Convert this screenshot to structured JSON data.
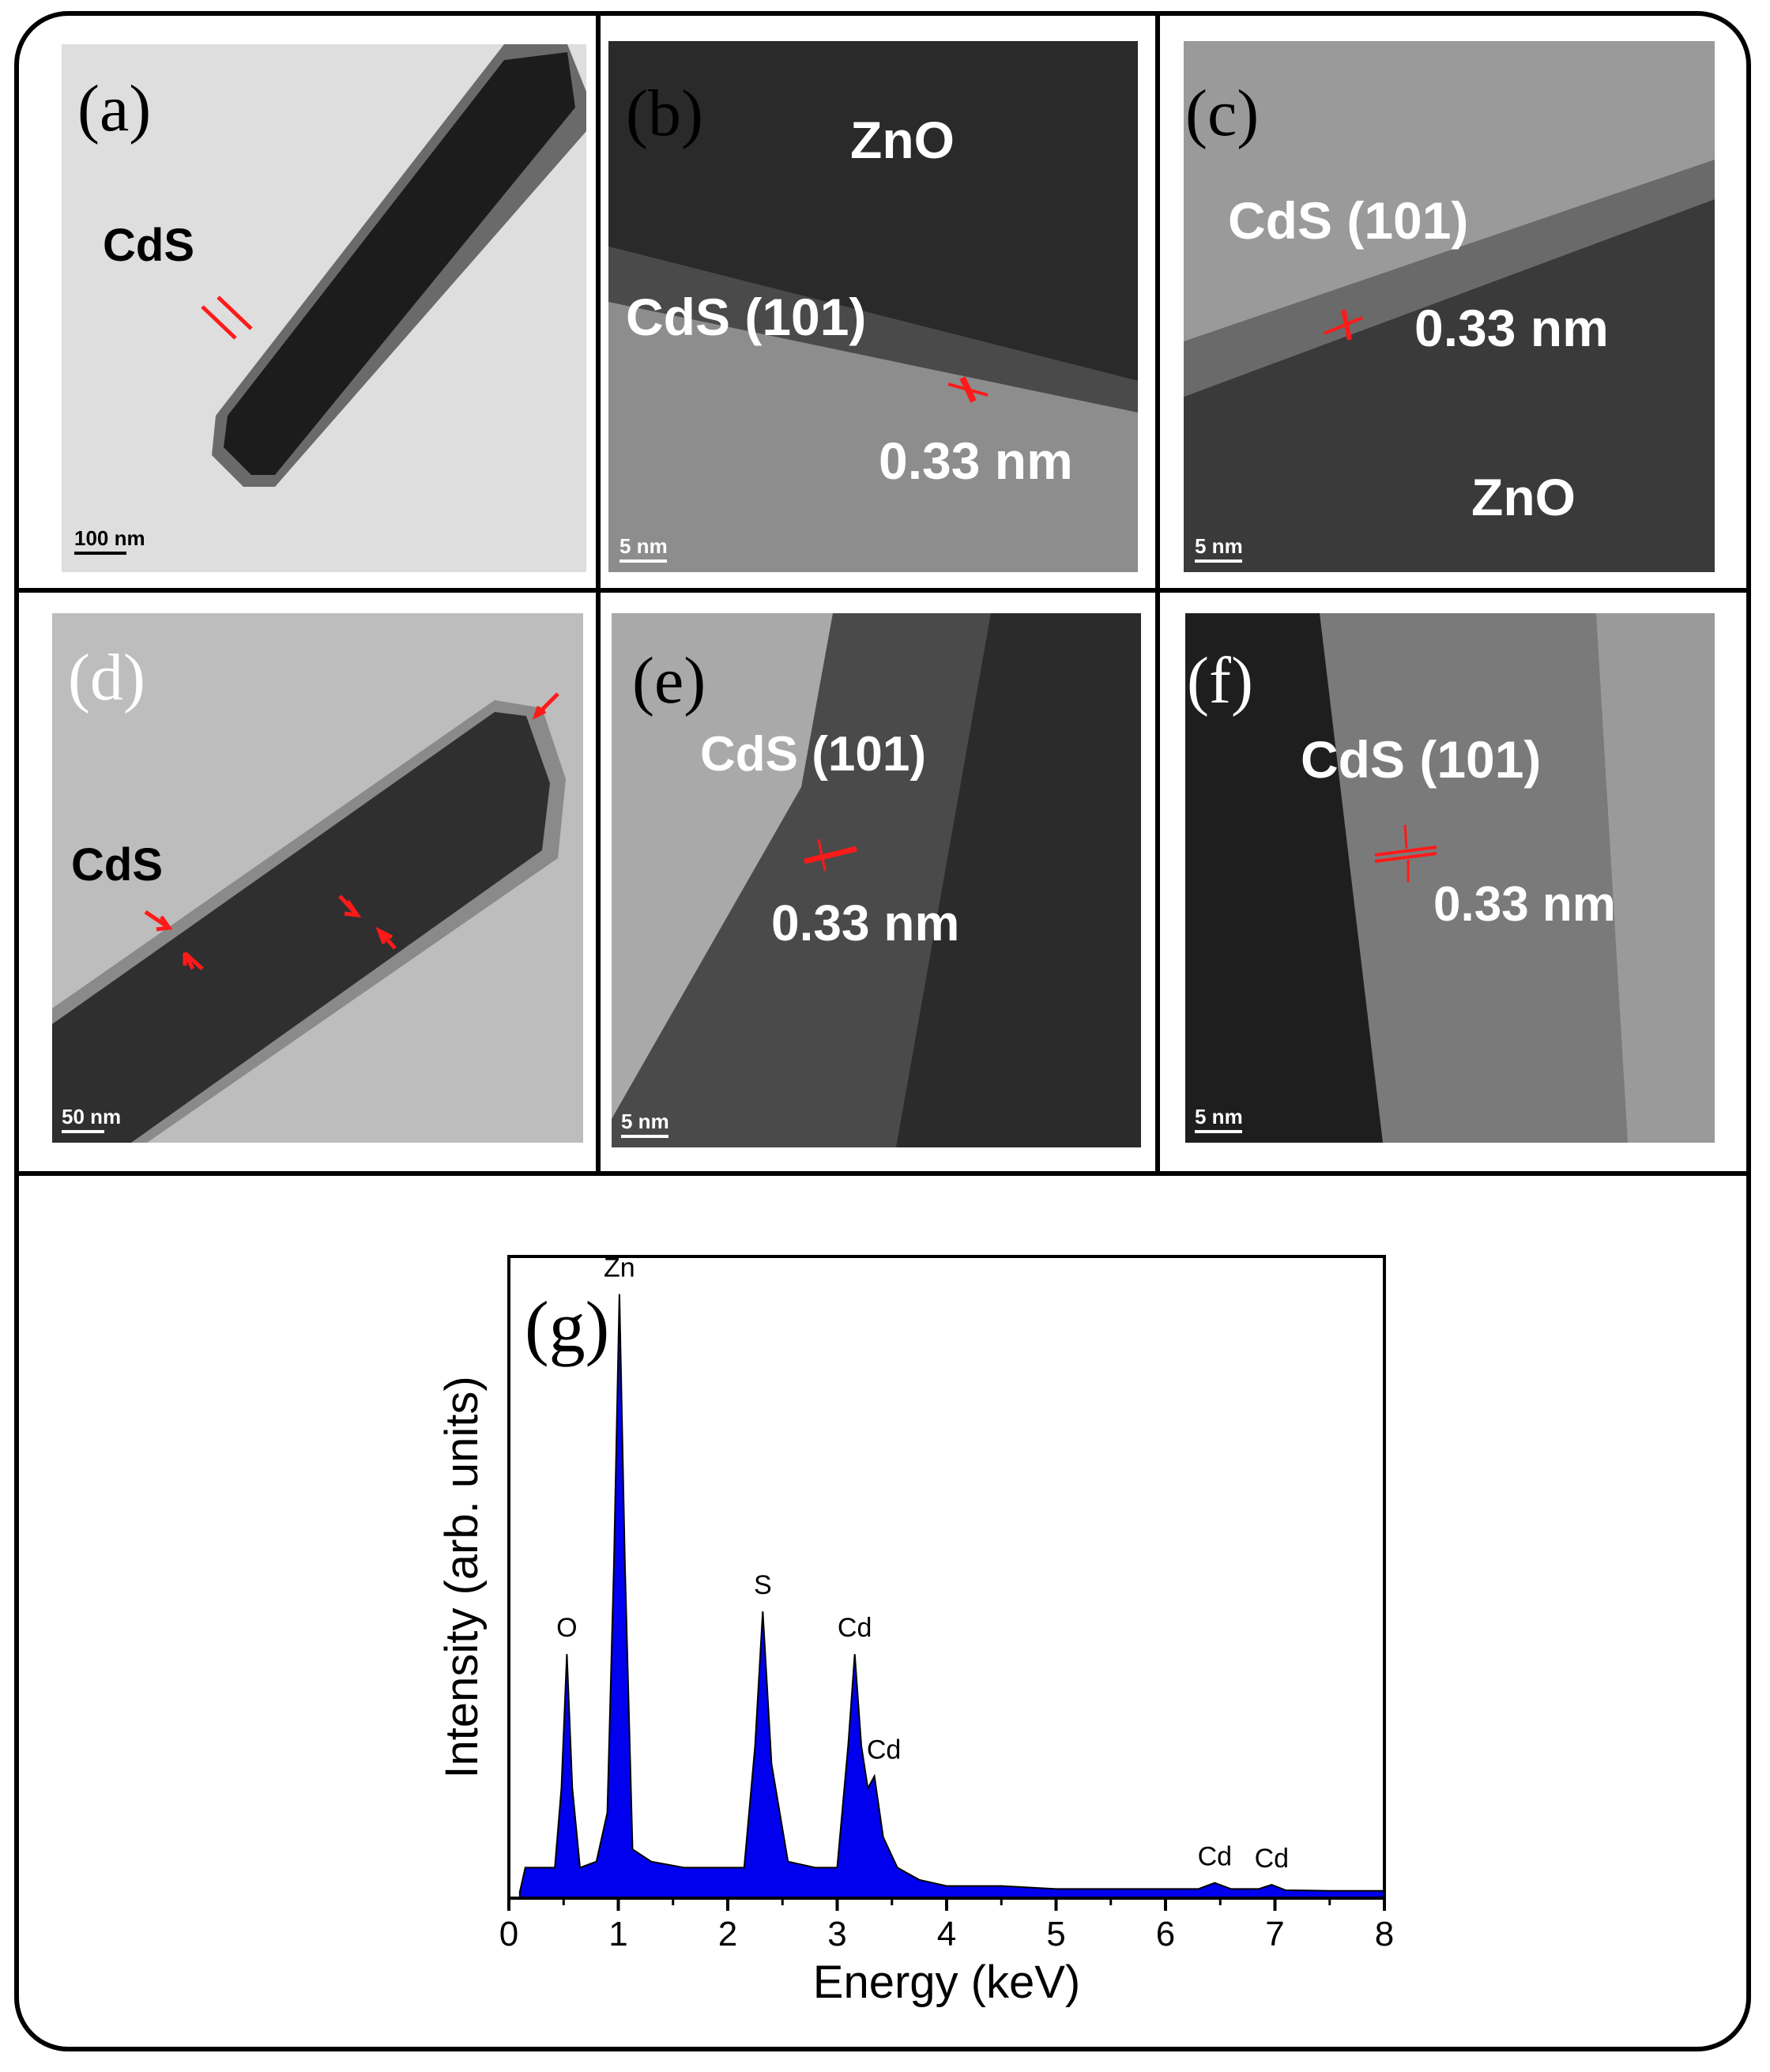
{
  "panels": {
    "a": {
      "tag": "(a)",
      "label": "CdS",
      "scale": "100 nm"
    },
    "b": {
      "tag": "(b)",
      "material": "ZnO",
      "label": "CdS (101)",
      "spacing": "0.33 nm",
      "scale": "5 nm"
    },
    "c": {
      "tag": "(c)",
      "label": "CdS (101)",
      "spacing": "0.33 nm",
      "material": "ZnO",
      "scale": "5 nm"
    },
    "d": {
      "tag": "(d)",
      "label": "CdS",
      "scale": "50 nm"
    },
    "e": {
      "tag": "(e)",
      "label": "CdS (101)",
      "spacing": "0.33 nm",
      "scale": "5 nm"
    },
    "f": {
      "tag": "(f)",
      "label": "CdS (101)",
      "spacing": "0.33 nm",
      "scale": "5 nm"
    }
  },
  "colors": {
    "arrow": "#ff1a1a",
    "spectrum": "#0000ee"
  },
  "chart_data": {
    "type": "area",
    "panel_tag": "(g)",
    "xlabel": "Energy (keV)",
    "ylabel": "Intensity (arb. units)",
    "xlim": [
      0,
      8
    ],
    "ylim": [
      0,
      100
    ],
    "xticks": [
      "0",
      "1",
      "2",
      "3",
      "4",
      "5",
      "6",
      "7",
      "8"
    ],
    "series": [
      {
        "x": [
          0.1,
          0.15,
          0.3,
          0.42,
          0.48,
          0.53,
          0.58,
          0.65,
          0.8,
          0.9,
          0.96,
          1.01,
          1.06,
          1.13,
          1.3,
          1.6,
          1.9,
          2.15,
          2.25,
          2.32,
          2.4,
          2.55,
          2.8,
          3.0,
          3.1,
          3.16,
          3.22,
          3.28,
          3.34,
          3.42,
          3.55,
          3.75,
          4.0,
          4.5,
          5.0,
          5.5,
          6.0,
          6.3,
          6.45,
          6.6,
          6.85,
          6.97,
          7.1,
          7.5,
          8.0
        ],
        "y": [
          1,
          5,
          5,
          5,
          18,
          40,
          18,
          5,
          6,
          14,
          55,
          99,
          55,
          8,
          6,
          5,
          5,
          5,
          25,
          47,
          22,
          6,
          5,
          5,
          25,
          40,
          25,
          18,
          20,
          10,
          5,
          3,
          2,
          2,
          1.5,
          1.5,
          1.5,
          1.5,
          2.5,
          1.5,
          1.5,
          2.2,
          1.3,
          1.2,
          1.2
        ]
      }
    ],
    "annotations": [
      {
        "label": "O",
        "x": 0.53,
        "y": 40
      },
      {
        "label": "Zn",
        "x": 1.01,
        "y": 99
      },
      {
        "label": "S",
        "x": 2.32,
        "y": 47
      },
      {
        "label": "Cd",
        "x": 3.16,
        "y": 40
      },
      {
        "label": "Cd",
        "x": 3.34,
        "y": 20
      },
      {
        "label": "Cd",
        "x": 6.45,
        "y": 2.5
      },
      {
        "label": "Cd",
        "x": 6.97,
        "y": 2.2
      }
    ]
  }
}
